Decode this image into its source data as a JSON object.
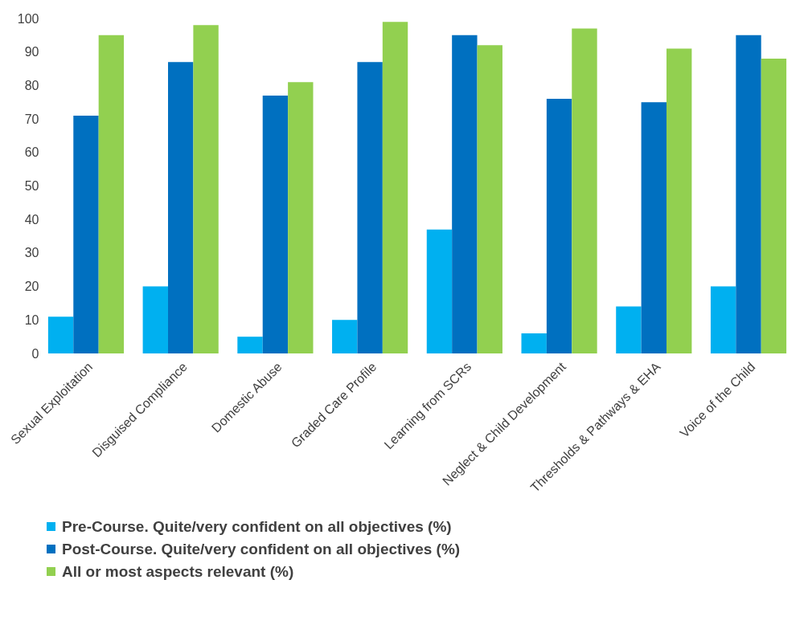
{
  "chart_data": {
    "type": "bar",
    "categories": [
      "Sexual Exploitation",
      "Disguised Compliance",
      "Domestic Abuse",
      "Graded Care Profile",
      "Learning from SCRs",
      "Neglect & Child Development",
      "Thresholds & Pathways & EHA",
      "Voice of the Child"
    ],
    "series": [
      {
        "name": "Pre-Course.  Quite/very confident on all objectives (%)",
        "color": "#00b0f0",
        "values": [
          11,
          20,
          5,
          10,
          37,
          6,
          14,
          20
        ]
      },
      {
        "name": "Post-Course. Quite/very confident on all objectives  (%)",
        "color": "#0070c0",
        "values": [
          71,
          87,
          77,
          87,
          95,
          76,
          75,
          95
        ]
      },
      {
        "name": "All or most aspects relevant (%)",
        "color": "#92d050",
        "values": [
          95,
          98,
          81,
          99,
          92,
          97,
          91,
          88
        ]
      }
    ],
    "ylim": [
      0,
      100
    ],
    "yticks": [
      0,
      10,
      20,
      30,
      40,
      50,
      60,
      70,
      80,
      90,
      100
    ],
    "grid": false,
    "legend": "bottom left"
  }
}
